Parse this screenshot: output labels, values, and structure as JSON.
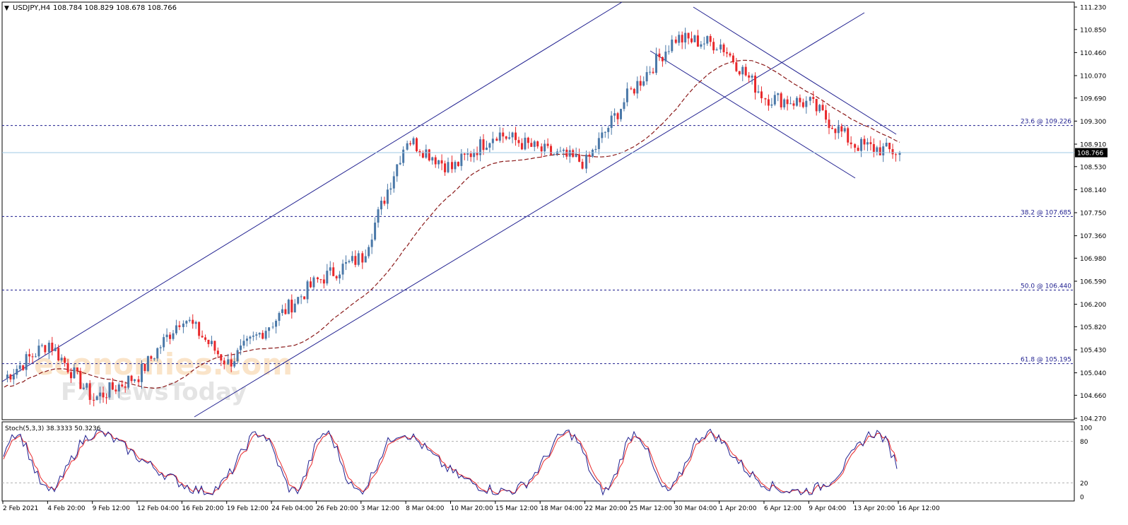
{
  "header": {
    "symbol": "USDJPY,H4",
    "ohlc": "108.784 108.829 108.678 108.766"
  },
  "price_axis": {
    "ticks": [
      "111.230",
      "110.850",
      "110.460",
      "110.070",
      "109.690",
      "109.300",
      "108.910",
      "108.530",
      "108.140",
      "107.750",
      "107.360",
      "106.980",
      "106.590",
      "106.200",
      "105.820",
      "105.430",
      "105.040",
      "104.660",
      "104.270"
    ],
    "current_price_label": "108.766",
    "current_price": 108.766
  },
  "fib_levels": [
    {
      "label": "23.6 @ 109.226",
      "price": 109.226
    },
    {
      "label": "38.2 @ 107.685",
      "price": 107.685
    },
    {
      "label": "50.0 @ 106.440",
      "price": 106.44
    },
    {
      "label": "61.8 @ 105.195",
      "price": 105.195
    }
  ],
  "stoch": {
    "label": "Stoch(5,3,3) 38.3333 50.3236",
    "ticks": [
      "100",
      "80",
      "20",
      "0"
    ]
  },
  "time_axis": {
    "labels": [
      "2 Feb 2021",
      "4 Feb 20:00",
      "9 Feb 12:00",
      "12 Feb 04:00",
      "16 Feb 20:00",
      "19 Feb 12:00",
      "24 Feb 04:00",
      "26 Feb 20:00",
      "3 Mar 12:00",
      "8 Mar 04:00",
      "10 Mar 20:00",
      "15 Mar 12:00",
      "18 Mar 04:00",
      "22 Mar 20:00",
      "25 Mar 12:00",
      "30 Mar 04:00",
      "1 Apr 20:00",
      "6 Apr 12:00",
      "9 Apr 04:00",
      "13 Apr 20:00",
      "16 Apr 12:00"
    ]
  },
  "watermark": {
    "line1": "economies.com",
    "line2": "FXNewsToday"
  },
  "colors": {
    "bull": "#4a78a8",
    "bear": "#e8282b",
    "trendline": "#1f1f8f",
    "fib": "#1f1f8f",
    "ma": "#8b1a1a",
    "stoch_main": "#1f1f8f",
    "stoch_signal": "#e8282b",
    "current_price_line": "#9fc8e6"
  },
  "chart_data": {
    "type": "candlestick",
    "symbol": "USDJPY",
    "timeframe": "H4",
    "ylim": [
      104.27,
      111.23
    ],
    "key_points": [
      {
        "x": "2 Feb 2021",
        "close": 104.95
      },
      {
        "x": "4 Feb 20:00",
        "close": 105.55
      },
      {
        "x": "9 Feb 12:00",
        "close": 104.6
      },
      {
        "x": "12 Feb 04:00",
        "close": 105.0
      },
      {
        "x": "16 Feb 20:00",
        "close": 106.0
      },
      {
        "x": "19 Feb 12:00",
        "close": 105.2
      },
      {
        "x": "24 Feb 04:00",
        "close": 105.9
      },
      {
        "x": "26 Feb 20:00",
        "close": 106.6
      },
      {
        "x": "3 Mar 12:00",
        "close": 107.0
      },
      {
        "x": "8 Mar 04:00",
        "close": 109.0
      },
      {
        "x": "10 Mar 20:00",
        "close": 108.5
      },
      {
        "x": "15 Mar 12:00",
        "close": 109.1
      },
      {
        "x": "18 Mar 04:00",
        "close": 108.8
      },
      {
        "x": "22 Mar 20:00",
        "close": 108.6
      },
      {
        "x": "25 Mar 12:00",
        "close": 109.8
      },
      {
        "x": "30 Mar 04:00",
        "close": 110.7
      },
      {
        "x": "1 Apr 20:00",
        "close": 110.6
      },
      {
        "x": "6 Apr 12:00",
        "close": 109.7
      },
      {
        "x": "9 Apr 04:00",
        "close": 109.6
      },
      {
        "x": "13 Apr 20:00",
        "close": 108.9
      },
      {
        "x": "16 Apr 12:00",
        "close": 108.766
      }
    ],
    "indicators": {
      "stochastic_main": 38.3333,
      "stochastic_signal": 50.3236
    },
    "grid": false
  }
}
